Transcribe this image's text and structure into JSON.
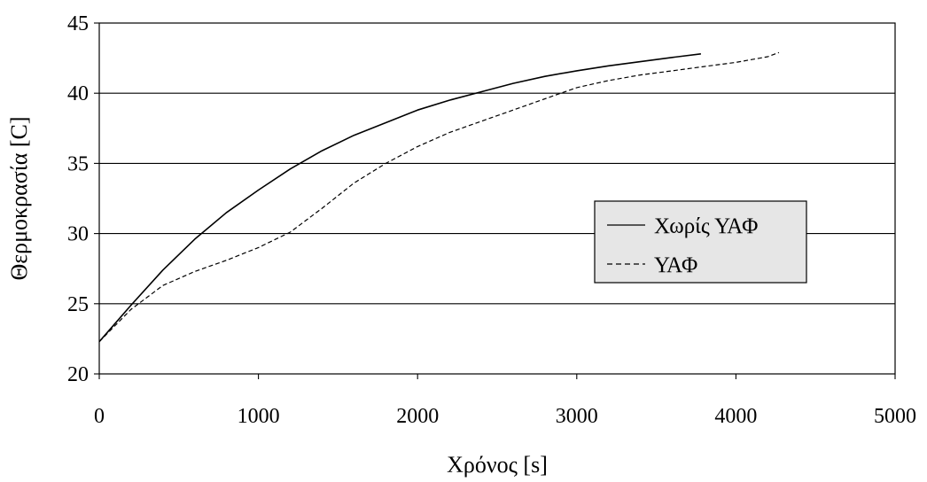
{
  "chart_data": {
    "type": "line",
    "title": "",
    "xlabel": "Χρόνος [s]",
    "ylabel": "Θερμοκρασία [C]",
    "xlim": [
      0,
      5000
    ],
    "ylim": [
      20,
      45
    ],
    "x_ticks": [
      0,
      1000,
      2000,
      3000,
      4000,
      5000
    ],
    "y_ticks": [
      20,
      25,
      30,
      35,
      40,
      45
    ],
    "x_tick_labels": [
      "0",
      "1000",
      "2000",
      "3000",
      "4000",
      "5000"
    ],
    "y_tick_labels": [
      "20",
      "25",
      "30",
      "35",
      "40",
      "45"
    ],
    "grid": "horizontal",
    "legend_position": "center-right",
    "series": [
      {
        "name": "Χωρίς ΥΑΦ",
        "style": "solid",
        "color": "#000000",
        "points": [
          [
            0,
            22.3
          ],
          [
            200,
            24.9
          ],
          [
            400,
            27.4
          ],
          [
            600,
            29.6
          ],
          [
            800,
            31.5
          ],
          [
            1000,
            33.1
          ],
          [
            1200,
            34.6
          ],
          [
            1400,
            35.9
          ],
          [
            1600,
            37.0
          ],
          [
            1800,
            37.9
          ],
          [
            2000,
            38.8
          ],
          [
            2200,
            39.5
          ],
          [
            2400,
            40.1
          ],
          [
            2600,
            40.7
          ],
          [
            2800,
            41.2
          ],
          [
            3000,
            41.6
          ],
          [
            3200,
            41.95
          ],
          [
            3400,
            42.25
          ],
          [
            3600,
            42.55
          ],
          [
            3780,
            42.8
          ]
        ]
      },
      {
        "name": "ΥΑΦ",
        "style": "dashed",
        "color": "#000000",
        "points": [
          [
            0,
            22.3
          ],
          [
            200,
            24.6
          ],
          [
            400,
            26.3
          ],
          [
            600,
            27.3
          ],
          [
            800,
            28.1
          ],
          [
            1000,
            29.0
          ],
          [
            1200,
            30.1
          ],
          [
            1400,
            31.8
          ],
          [
            1600,
            33.6
          ],
          [
            1800,
            35.0
          ],
          [
            2000,
            36.2
          ],
          [
            2200,
            37.2
          ],
          [
            2400,
            38.0
          ],
          [
            2600,
            38.8
          ],
          [
            2800,
            39.6
          ],
          [
            3000,
            40.4
          ],
          [
            3200,
            40.9
          ],
          [
            3400,
            41.3
          ],
          [
            3600,
            41.6
          ],
          [
            3800,
            41.9
          ],
          [
            4000,
            42.2
          ],
          [
            4200,
            42.6
          ],
          [
            4270,
            42.9
          ]
        ]
      }
    ]
  }
}
